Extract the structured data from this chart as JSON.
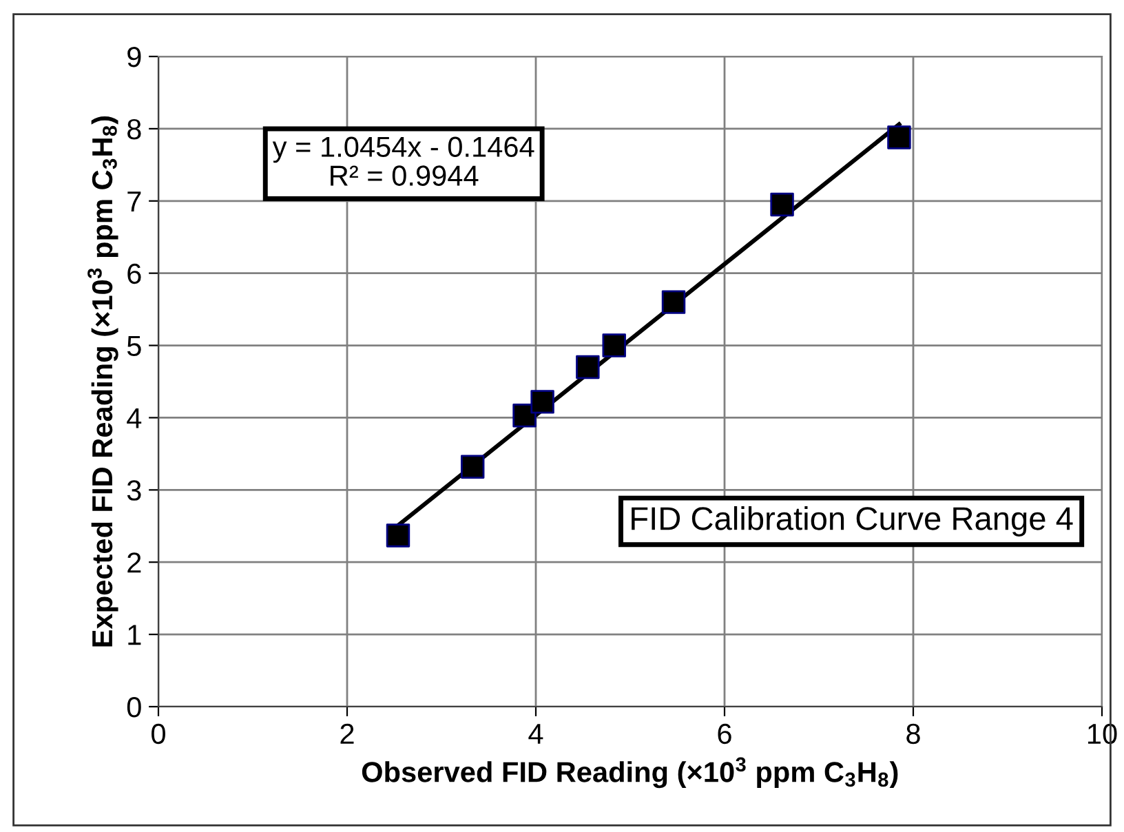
{
  "chart_data": {
    "type": "scatter",
    "title": "FID Calibration Curve Range 4",
    "xlabel": "Observed FID Reading (×10$^{3}$ ppm C$_{3}$H$_{8}$)",
    "ylabel": "Expected FID Reading (×10$^{3}$ ppm C$_{3}$H$_{8}$)",
    "annotations": [
      "y = 1.0454x - 0.1464\nR² = 0.9944"
    ],
    "x": [
      2.54,
      3.33,
      3.88,
      4.07,
      4.55,
      4.83,
      5.46,
      6.61,
      7.85
    ],
    "series": [
      {
        "color": "#000000",
        "marker": "square",
        "values": [
          2.37,
          3.32,
          4.03,
          4.22,
          4.7,
          5.0,
          5.6,
          6.95,
          7.88
        ]
      },
      {
        "type": "line",
        "color": "#000000",
        "marker": "none",
        "line_style": "solid",
        "x": [
          2.54,
          7.85
        ],
        "values": [
          2.509,
          8.06
        ]
      }
    ],
    "xlim": [
      0,
      10
    ],
    "ylim": [
      0,
      9
    ],
    "xticks": [
      0,
      2,
      4,
      6,
      8,
      10
    ],
    "yticks": [
      0,
      1,
      2,
      3,
      4,
      5,
      6,
      7,
      8,
      9
    ],
    "grid": true,
    "legend": false
  }
}
